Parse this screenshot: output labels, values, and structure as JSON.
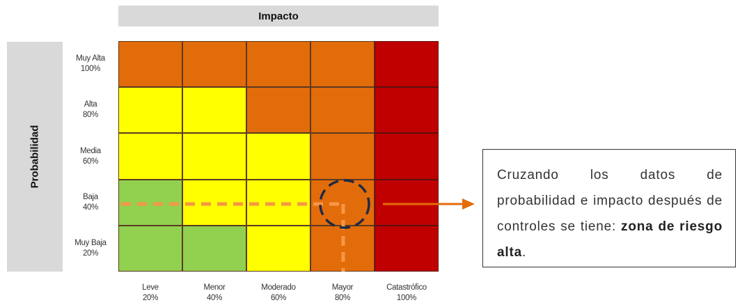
{
  "axes": {
    "impact_title": "Impacto",
    "probability_title": "Probabilidad"
  },
  "probability_levels": [
    {
      "name": "Muy Alta",
      "value": "100%"
    },
    {
      "name": "Alta",
      "value": "80%"
    },
    {
      "name": "Media",
      "value": "60%"
    },
    {
      "name": "Baja",
      "value": "40%"
    },
    {
      "name": "Muy Baja",
      "value": "20%"
    }
  ],
  "impact_levels": [
    {
      "name": "Leve",
      "value": "20%"
    },
    {
      "name": "Menor",
      "value": "40%"
    },
    {
      "name": "Moderado",
      "value": "60%"
    },
    {
      "name": "Mayor",
      "value": "80%"
    },
    {
      "name": "Catastrófico",
      "value": "100%"
    }
  ],
  "zone_colors": {
    "green": "#92d050",
    "yellow": "#ffff00",
    "orange": "#e36c0a",
    "red": "#c00000"
  },
  "matrix": [
    [
      "orange",
      "orange",
      "orange",
      "orange",
      "red"
    ],
    [
      "yellow",
      "yellow",
      "orange",
      "orange",
      "red"
    ],
    [
      "yellow",
      "yellow",
      "yellow",
      "orange",
      "red"
    ],
    [
      "green",
      "yellow",
      "yellow",
      "orange",
      "red"
    ],
    [
      "green",
      "green",
      "yellow",
      "orange",
      "red"
    ]
  ],
  "highlight": {
    "probability": "Baja",
    "impact": "Mayor",
    "marker_color": "#1f2a44",
    "guide_color": "#f79646",
    "arrow_color": "#e36c0a"
  },
  "callout": {
    "text_before": "Cruzando los datos de probabilidad e impacto después de controles se tiene: ",
    "text_bold": "zona de riesgo alta",
    "text_after": "."
  }
}
